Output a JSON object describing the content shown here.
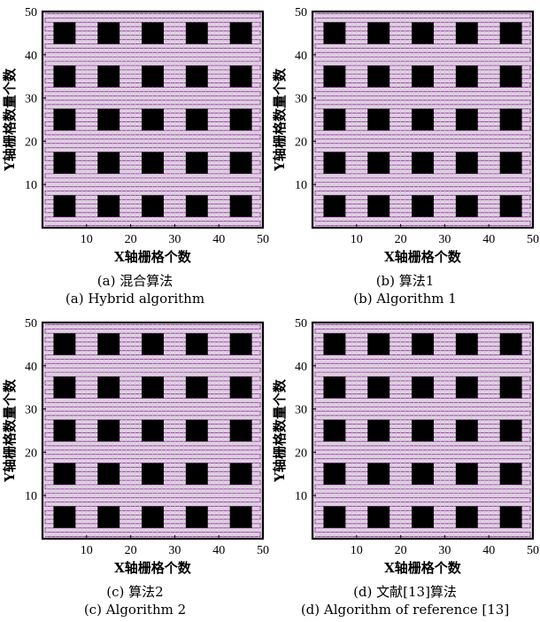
{
  "chart_data": [
    {
      "type": "grid-path-map",
      "caption_zh": "(a) 混合算法",
      "caption_en": "(a) Hybrid algorithm",
      "xlabel": "X轴栅格个数",
      "ylabel": "Y轴栅格数量个数",
      "xlim": [
        0,
        50
      ],
      "ylim": [
        0,
        50
      ],
      "xticks": [
        10,
        20,
        30,
        40,
        50
      ],
      "yticks": [
        10,
        20,
        30,
        40,
        50
      ],
      "grid": true,
      "grid_cells": 50,
      "obstacle_centers_x": [
        5,
        15,
        25,
        35,
        45
      ],
      "obstacle_centers_y": [
        5,
        15,
        25,
        35,
        45
      ],
      "obstacle_size": 5,
      "path_color": "#8e3f98",
      "obstacle_color": "#000000"
    },
    {
      "type": "grid-path-map",
      "caption_zh": "(b) 算法1",
      "caption_en": "(b) Algorithm 1",
      "xlabel": "X轴栅格个数",
      "ylabel": "Y轴栅格数量个数",
      "xlim": [
        0,
        50
      ],
      "ylim": [
        0,
        50
      ],
      "xticks": [
        10,
        20,
        30,
        40,
        50
      ],
      "yticks": [
        10,
        20,
        30,
        40,
        50
      ],
      "grid": true,
      "grid_cells": 50,
      "obstacle_centers_x": [
        5,
        15,
        25,
        35,
        45
      ],
      "obstacle_centers_y": [
        5,
        15,
        25,
        35,
        45
      ],
      "obstacle_size": 5,
      "path_color": "#8e3f98",
      "obstacle_color": "#000000"
    },
    {
      "type": "grid-path-map",
      "caption_zh": "(c) 算法2",
      "caption_en": "(c) Algorithm 2",
      "xlabel": "X轴栅格个数",
      "ylabel": "Y轴栅格数量个数",
      "xlim": [
        0,
        50
      ],
      "ylim": [
        0,
        50
      ],
      "xticks": [
        10,
        20,
        30,
        40,
        50
      ],
      "yticks": [
        10,
        20,
        30,
        40,
        50
      ],
      "grid": true,
      "grid_cells": 50,
      "obstacle_centers_x": [
        5,
        15,
        25,
        35,
        45
      ],
      "obstacle_centers_y": [
        5,
        15,
        25,
        35,
        45
      ],
      "obstacle_size": 5,
      "path_color": "#8e3f98",
      "obstacle_color": "#000000"
    },
    {
      "type": "grid-path-map",
      "caption_zh": "(d) 文献[13]算法",
      "caption_en": "(d) Algorithm of reference [13]",
      "xlabel": "X轴栅格个数",
      "ylabel": "Y轴栅格数量个数",
      "xlim": [
        0,
        50
      ],
      "ylim": [
        0,
        50
      ],
      "xticks": [
        10,
        20,
        30,
        40,
        50
      ],
      "yticks": [
        10,
        20,
        30,
        40,
        50
      ],
      "grid": true,
      "grid_cells": 50,
      "obstacle_centers_x": [
        5,
        15,
        25,
        35,
        45
      ],
      "obstacle_centers_y": [
        5,
        15,
        25,
        35,
        45
      ],
      "obstacle_size": 5,
      "path_color": "#8e3f98",
      "obstacle_color": "#000000"
    }
  ]
}
